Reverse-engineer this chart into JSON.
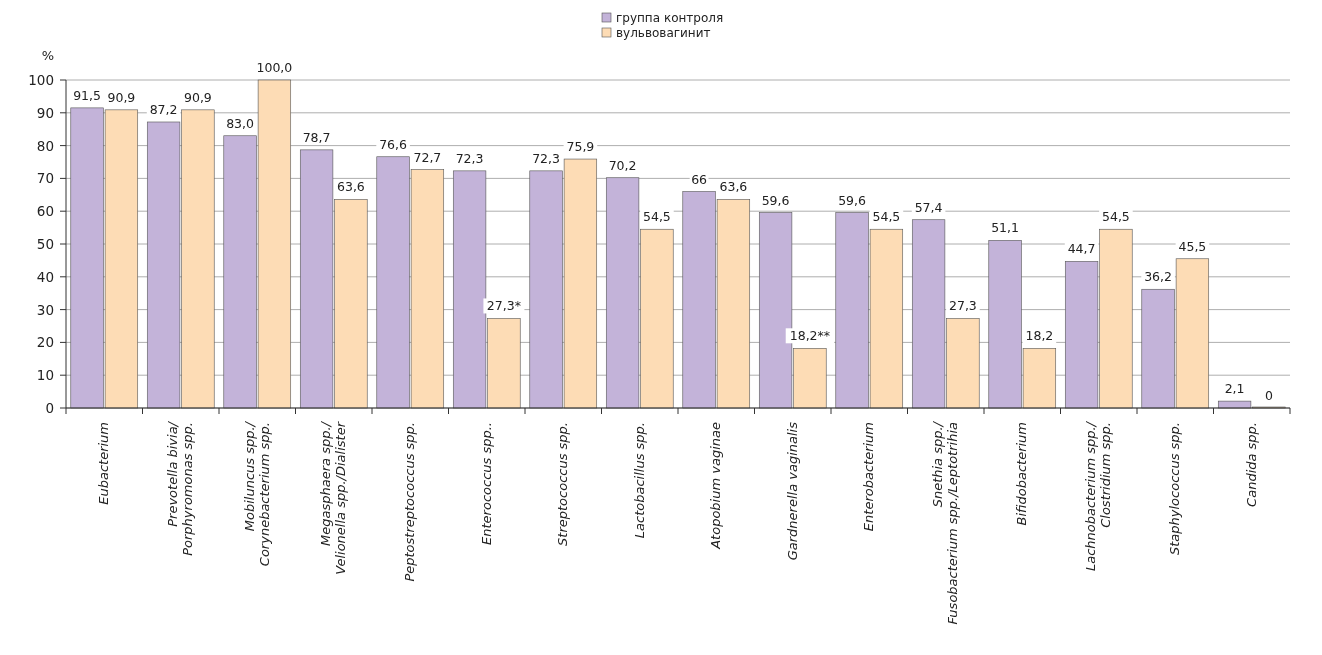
{
  "chart_data": {
    "type": "bar",
    "ylabel": "%",
    "legend": "top",
    "grid": "y",
    "ylim": [
      0,
      100
    ],
    "yticks": [
      0,
      10,
      20,
      30,
      40,
      50,
      60,
      70,
      80,
      90,
      100
    ],
    "categories": [
      "Eubacterium",
      "Prevotella bivia/\nPorphyromonas spp.",
      "Mobiluncus spp./\nCorynebacterium spp.",
      "Megasphaera spp./\nVelionella spp./Dialister",
      "Peptostreptococcus spp.",
      "Enterococcus spp..",
      "Streptococcus spp.",
      "Lactobacillus spp.",
      "Atopobium vaginae",
      "Gardnerella vaginalis",
      "Enterobacterium",
      "Snethia spp./\nFusobacterium spp./Leptotrihia",
      "Bifidobacterium",
      "Lachnobacterium spp./\nClostridium spp.",
      "Staphylococcus spp.",
      "Candida spp."
    ],
    "series": [
      {
        "name": "группа контроля",
        "color": "#c3b3d9",
        "values": [
          91.5,
          87.2,
          83.0,
          78.7,
          76.6,
          72.3,
          72.3,
          70.2,
          66,
          59.6,
          59.6,
          57.4,
          51.1,
          44.7,
          36.2,
          2.1
        ],
        "value_labels": [
          "91,5",
          "87,2",
          "83,0",
          "78,7",
          "76,6",
          "72,3",
          "72,3",
          "70,2",
          "66",
          "59,6",
          "59,6",
          "57,4",
          "51,1",
          "44,7",
          "36,2",
          "2,1"
        ]
      },
      {
        "name": "вульвовагинит",
        "color": "#fddcb5",
        "values": [
          90.9,
          90.9,
          100.0,
          63.6,
          72.7,
          27.3,
          75.9,
          54.5,
          63.6,
          18.2,
          54.5,
          27.3,
          18.2,
          54.5,
          45.5,
          0
        ],
        "value_labels": [
          "90,9",
          "90,9",
          "100,0",
          "63,6",
          "72,7",
          "27,3*",
          "75,9",
          "54,5",
          "63,6",
          "18,2**",
          "54,5",
          "27,3",
          "18,2",
          "54,5",
          "45,5",
          "0"
        ]
      }
    ]
  }
}
